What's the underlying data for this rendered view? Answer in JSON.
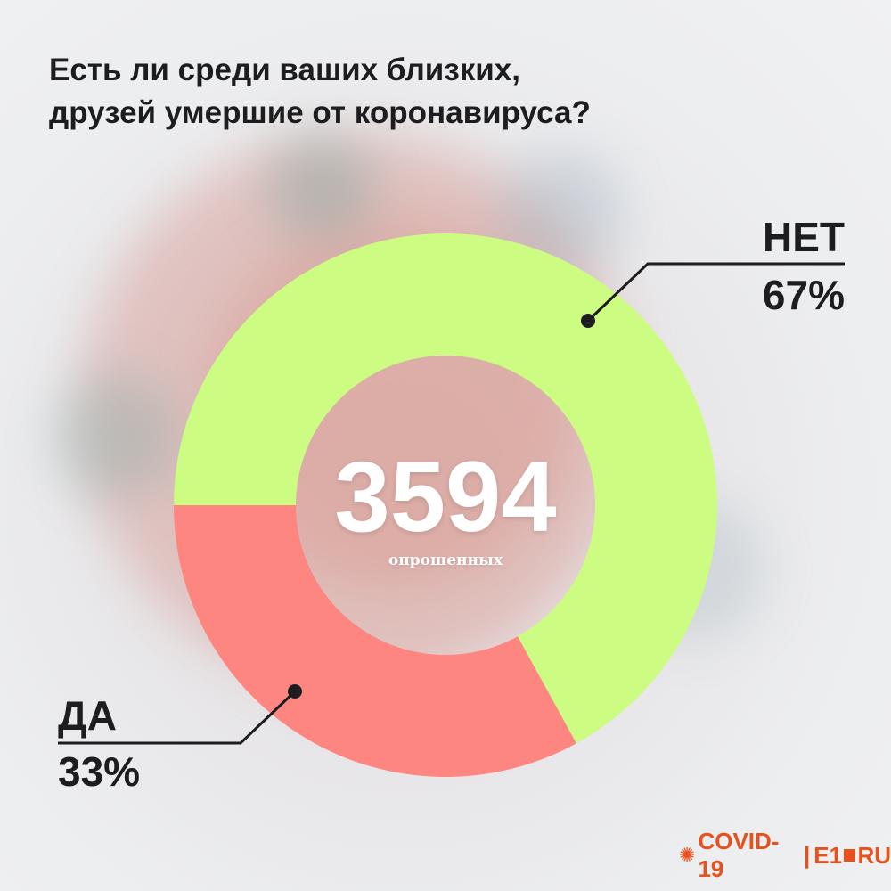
{
  "title": {
    "line1": "Есть ли среди ваших близких,",
    "line2": "друзей умершие от коронавируса?"
  },
  "center": {
    "total": "3594",
    "caption": "опрошенных"
  },
  "colors": {
    "net": "#ccfc82",
    "da": "#fd8681",
    "leader": "#1d1d1f"
  },
  "logo": {
    "covid": "COVID-19",
    "sep": "|",
    "e1": "E1",
    "ru": "RU"
  },
  "chart_data": {
    "type": "pie",
    "title": "Есть ли среди ваших близких, друзей умершие от коронавируса?",
    "total": 3594,
    "total_caption": "опрошенных",
    "categories": [
      "НЕТ",
      "ДА"
    ],
    "values": [
      67,
      33
    ],
    "value_labels": [
      "67%",
      "33%"
    ],
    "series": [
      {
        "name": "НЕТ",
        "value": 67,
        "label": "67%",
        "color": "#ccfc82"
      },
      {
        "name": "ДА",
        "value": 33,
        "label": "33%",
        "color": "#fd8681"
      }
    ]
  }
}
